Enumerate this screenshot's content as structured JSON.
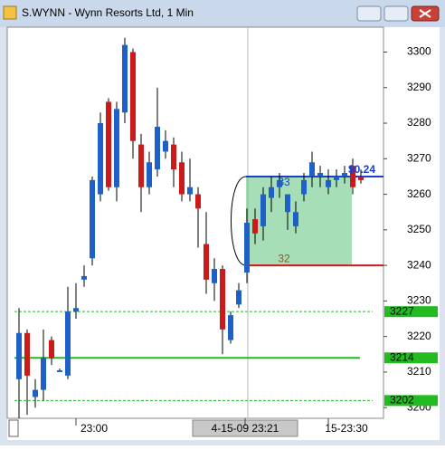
{
  "window_title": "S.WYNN - Wynn Resorts Ltd, 1 Min",
  "chart_data": {
    "type": "candlestick",
    "categories": [
      null,
      null,
      null,
      null,
      null,
      null,
      null,
      null,
      null,
      "23:00",
      null,
      null,
      null,
      null,
      null,
      null,
      null,
      null,
      null,
      null,
      null,
      null,
      null,
      null,
      null,
      null,
      null,
      null,
      "4-15-09 23:21",
      null,
      null,
      null,
      null,
      null,
      null,
      null,
      null,
      null,
      null,
      null,
      "15-23:30",
      null,
      null
    ],
    "open": [
      3208,
      3221,
      3203,
      3205,
      3219,
      3210,
      3209,
      3227,
      3236,
      3242,
      3260,
      3286,
      3262,
      3283,
      3300,
      3274,
      3262,
      3267,
      3272,
      3274,
      3269,
      3260,
      3260,
      3246,
      3235,
      3239,
      3219,
      3229,
      3238,
      3253,
      3251,
      3259,
      3262,
      3255,
      3251,
      3260,
      3265,
      3265,
      3262,
      3264,
      3265,
      3268,
      3265
    ],
    "high": [
      3228,
      3222,
      3208,
      3222,
      3220,
      3211,
      3234,
      3235,
      3240,
      3265,
      3283,
      3287,
      3286,
      3304,
      3301,
      3277,
      3272,
      3290,
      3278,
      3276,
      3272,
      3270,
      3262,
      3255,
      3242,
      3240,
      3227,
      3235,
      3256,
      3256,
      3262,
      3265,
      3266,
      3260,
      3258,
      3266,
      3272,
      3268,
      3267,
      3267,
      3268,
      3270,
      3267
    ],
    "low": [
      3197,
      3198,
      3200,
      3202,
      3212,
      3210,
      3208,
      3225,
      3234,
      3240,
      3258,
      3261,
      3258,
      3280,
      3270,
      3255,
      3260,
      3265,
      3270,
      3262,
      3258,
      3258,
      3245,
      3232,
      3230,
      3215,
      3218,
      3228,
      3235,
      3246,
      3247,
      3255,
      3259,
      3250,
      3249,
      3258,
      3262,
      3262,
      3260,
      3262,
      3263,
      3260,
      3263
    ],
    "close": [
      3221,
      3209,
      3205,
      3214,
      3214,
      3210.5,
      3227,
      3228,
      3237,
      3264,
      3280,
      3262,
      3284,
      3302,
      3275,
      3262,
      3269,
      3279,
      3275,
      3267,
      3260,
      3262,
      3256,
      3236,
      3239,
      3222,
      3226,
      3233,
      3252,
      3249,
      3260,
      3262,
      3264,
      3260,
      3255,
      3264,
      3269,
      3266,
      3264,
      3265,
      3266,
      3262,
      3264
    ],
    "up_color": "#1f5fc8",
    "down_color": "#cc1a1a",
    "ylim": [
      3197,
      3307
    ],
    "yticks": [
      3200,
      3210,
      3220,
      3230,
      3240,
      3250,
      3260,
      3270,
      3280,
      3290,
      3300
    ],
    "levels": [
      {
        "value": 3227,
        "color": "#22bb22",
        "dashed": true
      },
      {
        "value": 3214,
        "color": "#22bb22",
        "dashed": false
      },
      {
        "value": 3202,
        "color": "#22bb22",
        "dashed": true
      }
    ],
    "target": 3265,
    "target_label": "$0.24",
    "target_count": 33,
    "stop": 3240,
    "stop_count": 32
  }
}
